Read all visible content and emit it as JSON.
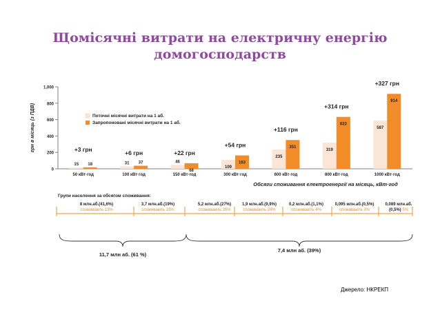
{
  "slide": {
    "title_line1": "Щомісячні витрати на електричну енергію",
    "title_line2": "домогосподарств",
    "source": "Джерело: НКРЕКП"
  },
  "chart_data": {
    "type": "bar",
    "ylabel": "грн в місяць (з ПДВ)",
    "xlabel": "Обсяги споживання електроенергії на місяць, кВт·год",
    "ylim": [
      0,
      1000
    ],
    "yticks": [
      "0",
      "200",
      "400",
      "600",
      "800",
      "1,000"
    ],
    "categories": [
      "50 кВт·год",
      "100 кВт·год",
      "150 кВт·год",
      "300 кВт·год",
      "600 кВт·год",
      "800 кВт·год",
      "1000 кВт·год"
    ],
    "series": [
      {
        "name": "Поточні місячні витрати на 1 аб.",
        "values": [
          15,
          31,
          46,
          109,
          235,
          319,
          587
        ],
        "color": "#fbe5d6"
      },
      {
        "name": "Запропоновані місячні витрати на 1 аб.",
        "values": [
          18,
          37,
          68,
          163,
          351,
          633,
          914
        ],
        "color": "#f28c28"
      }
    ],
    "increase_labels": [
      "+3 грн",
      "+6 грн",
      "+22 грн",
      "+54 грн",
      "+116 грн",
      "+314 грн",
      "+327 грн"
    ],
    "legend_position": "top-left",
    "grid": false
  },
  "groups": {
    "title": "Групи населення за обсягом споживання:",
    "segments": [
      {
        "count": "8 млн.аб.(41,6%)",
        "share": "споживають 13%"
      },
      {
        "count": "3,7 млн.аб.(19%)",
        "share": "споживають 15%"
      },
      {
        "count": "5,2 млн.аб.(27%)",
        "share": "споживають 35%"
      },
      {
        "count": "1,9 млн.аб.(9,9%)",
        "share": "споживають 24%"
      },
      {
        "count": "0,2 млн.аб.(1,1%)",
        "share": "споживають 4%"
      },
      {
        "count": "0,095 млн.аб.(0,5%)",
        "share": "споживають 3%"
      },
      {
        "count": "0,089 млн.аб.",
        "share_prefix": "(0,5%)",
        "share": " 5%"
      }
    ],
    "brace_left_label": "11,7 млн аб. (61 %)",
    "brace_right_label": "7,4 млн аб. (39%)"
  },
  "colors": {
    "title": "#8e4a9c",
    "accent": "#f28c28",
    "light": "#fbe5d6",
    "timeline": "#f4a24a"
  }
}
